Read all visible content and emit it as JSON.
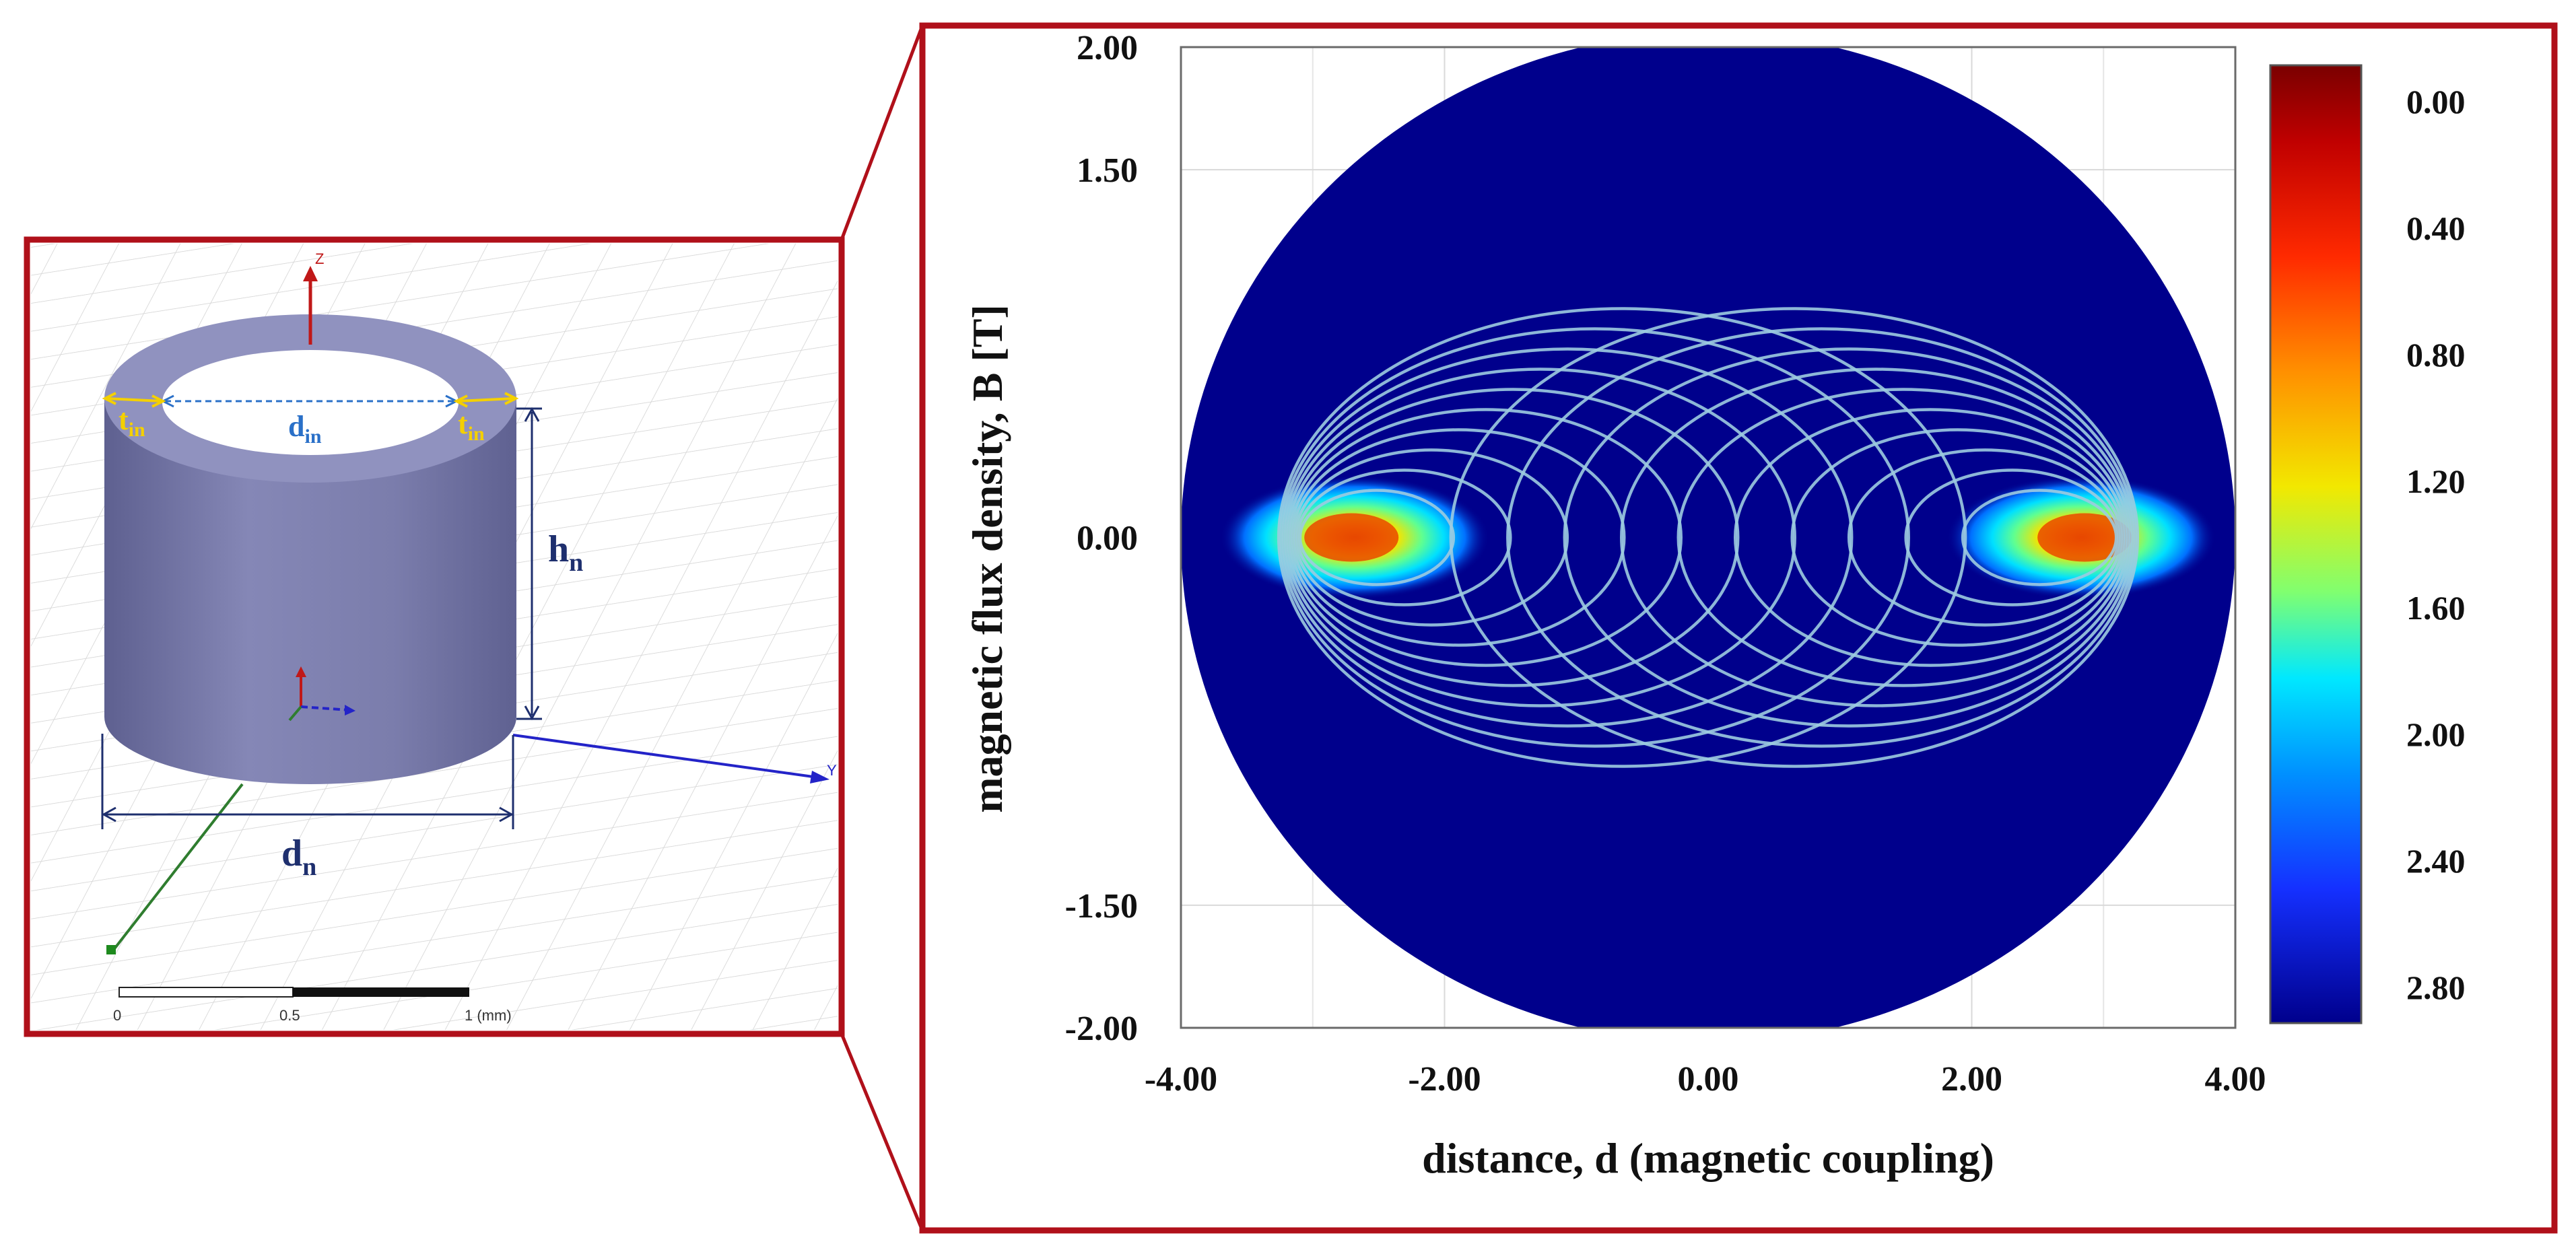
{
  "colors": {
    "frame": "#b0101a",
    "cylinder_body": "#7d7fae",
    "cylinder_top": "#8f91bc",
    "dim_dark": "#1e2f6e",
    "dim_yellow": "#f4d000",
    "dim_blue": "#2a70c8",
    "plot_bg": "#00008c",
    "contour": "#9ccbe0"
  },
  "cylinder_panel": {
    "labels": {
      "t_in_left": {
        "main": "t",
        "sub": "in"
      },
      "t_in_right": {
        "main": "t",
        "sub": "in"
      },
      "d_in": {
        "main": "d",
        "sub": "in"
      },
      "h_n": {
        "main": "h",
        "sub": "n"
      },
      "d_n": {
        "main": "d",
        "sub": "n"
      }
    },
    "axis_labels": {
      "z": "Z",
      "y": "Y"
    },
    "scale_bar": {
      "ticks": [
        "0",
        "0.5",
        "1 (mm)"
      ]
    }
  },
  "chart_data": {
    "type": "heatmap",
    "title": "",
    "xlabel": "distance, d (magnetic coupling)",
    "ylabel": "magnetic flux density, B [T]",
    "xlim": [
      -4.0,
      4.0
    ],
    "ylim": [
      -2.0,
      2.0
    ],
    "x_ticks": [
      "-4.00",
      "-2.00",
      "0.00",
      "2.00",
      "4.00"
    ],
    "y_ticks": [
      "2.00",
      "1.50",
      "0.00",
      "-1.50",
      "-2.00"
    ],
    "y_tick_values": [
      2.0,
      1.5,
      0.0,
      -1.5,
      -2.0
    ],
    "domain_circle": {
      "center": [
        0.0,
        0.0
      ],
      "radius_x": 4.0,
      "radius_y": 2.0
    },
    "field_sources": [
      {
        "name": "left-pole",
        "x": -2.4,
        "y": 0.0
      },
      {
        "name": "right-pole",
        "x": 2.55,
        "y": 0.0
      }
    ],
    "contour_levels": 10,
    "colorbar": {
      "labels": [
        "0.00",
        "0.40",
        "0.80",
        "1.20",
        "1.60",
        "2.00",
        "2.40",
        "2.80"
      ],
      "colors": [
        "#7a0000",
        "#d40000",
        "#ff4a00",
        "#ff9a00",
        "#f2e800",
        "#7dff7a",
        "#00e6ff",
        "#0096ff",
        "#1a3dff",
        "#00008c"
      ]
    }
  }
}
